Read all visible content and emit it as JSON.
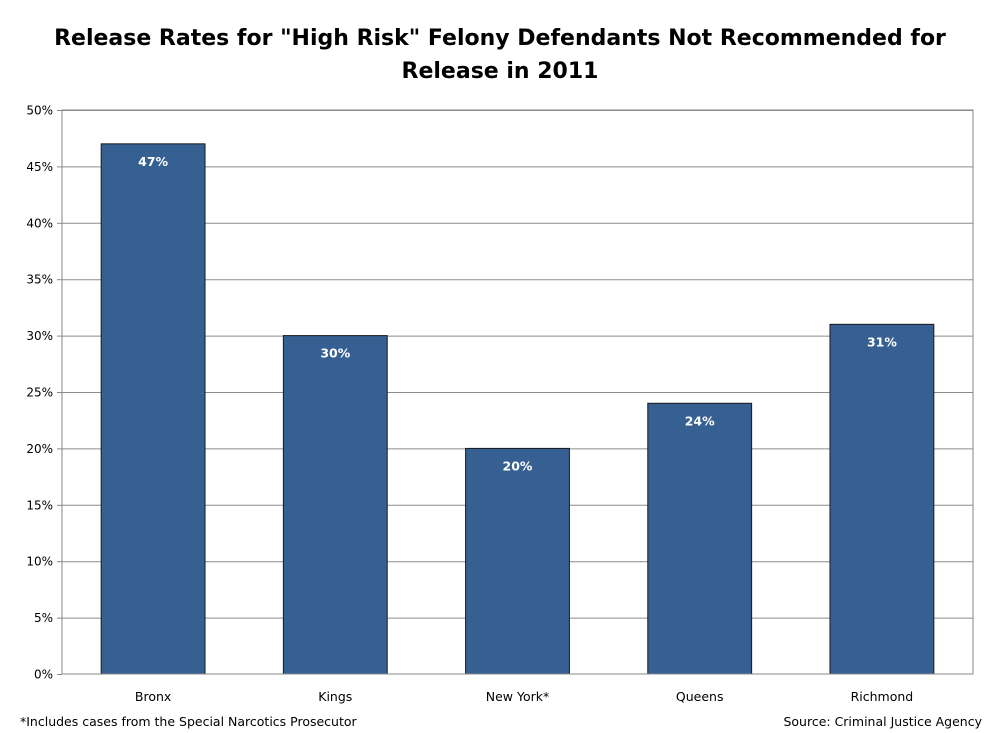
{
  "chart_data": {
    "type": "bar",
    "title_lines": [
      "Release Rates for \"High Risk\" Felony Defendants Not Recommended for",
      "Release in 2011"
    ],
    "categories": [
      "Bronx",
      "Kings",
      "New York*",
      "Queens",
      "Richmond"
    ],
    "values": [
      47,
      30,
      20,
      24,
      31
    ],
    "data_labels": [
      "47%",
      "30%",
      "20%",
      "24%",
      "31%"
    ],
    "ylim": [
      0,
      50
    ],
    "y_ticks": [
      0,
      5,
      10,
      15,
      20,
      25,
      30,
      35,
      40,
      45,
      50
    ],
    "y_tick_labels": [
      "0%",
      "5%",
      "10%",
      "15%",
      "20%",
      "25%",
      "30%",
      "35%",
      "40%",
      "45%",
      "50%"
    ],
    "grid": true,
    "bar_color": "#366092",
    "xlabel": "",
    "ylabel": ""
  },
  "footnote": "*Includes cases from the Special Narcotics Prosecutor",
  "source": "Source: Criminal Justice Agency"
}
